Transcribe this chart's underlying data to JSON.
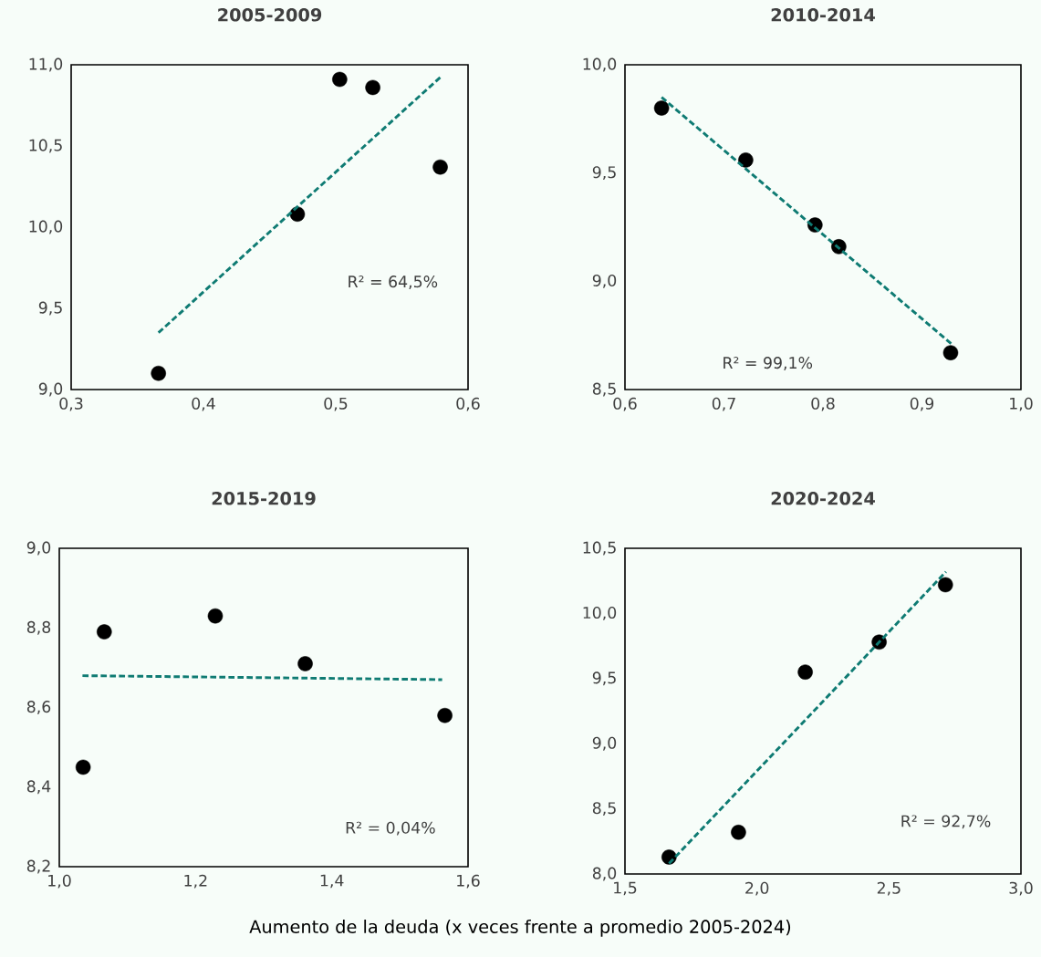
{
  "chart_data": [
    {
      "type": "scatter",
      "title": "2005-2009",
      "annotations": [
        "R² = 64,5%"
      ],
      "xlim": [
        0.3,
        0.6
      ],
      "xticks": [
        {
          "value": 0.3,
          "label": "0,3"
        },
        {
          "value": 0.4,
          "label": "0,4"
        },
        {
          "value": 0.5,
          "label": "0,5"
        },
        {
          "value": 0.6,
          "label": "0,6"
        }
      ],
      "ylim": [
        9.0,
        11.0
      ],
      "yticks": [
        {
          "value": 9.0,
          "label": "9,0"
        },
        {
          "value": 9.5,
          "label": "9,5"
        },
        {
          "value": 10.0,
          "label": "10,0"
        },
        {
          "value": 10.5,
          "label": "10,5"
        },
        {
          "value": 11.0,
          "label": "11,0"
        }
      ],
      "series": [
        {
          "type": "scatter",
          "marker": "circle",
          "color": "#000000",
          "x": [
            0.366,
            0.471,
            0.503,
            0.528,
            0.579
          ],
          "values": [
            9.1,
            10.08,
            10.91,
            10.86,
            10.37
          ]
        },
        {
          "type": "line",
          "line_style": "dashed",
          "marker": "none",
          "color": "#0f7b73",
          "x": [
            0.366,
            0.58
          ],
          "values": [
            9.35,
            10.93
          ]
        }
      ]
    },
    {
      "type": "scatter",
      "title": "2010-2014",
      "annotations": [
        "R² = 99,1%"
      ],
      "xlim": [
        0.6,
        1.0
      ],
      "xticks": [
        {
          "value": 0.6,
          "label": "0,6"
        },
        {
          "value": 0.7,
          "label": "0,7"
        },
        {
          "value": 0.8,
          "label": "0,8"
        },
        {
          "value": 0.9,
          "label": "0,9"
        },
        {
          "value": 1.0,
          "label": "1,0"
        }
      ],
      "ylim": [
        8.5,
        10.0
      ],
      "yticks": [
        {
          "value": 8.5,
          "label": "8,5"
        },
        {
          "value": 9.0,
          "label": "9,0"
        },
        {
          "value": 9.5,
          "label": "9,5"
        },
        {
          "value": 10.0,
          "label": "10,0"
        }
      ],
      "series": [
        {
          "type": "scatter",
          "marker": "circle",
          "color": "#000000",
          "x": [
            0.637,
            0.722,
            0.792,
            0.816,
            0.929
          ],
          "values": [
            9.8,
            9.56,
            9.26,
            9.16,
            8.67
          ]
        },
        {
          "type": "line",
          "line_style": "dashed",
          "marker": "none",
          "color": "#0f7b73",
          "x": [
            0.637,
            0.93
          ],
          "values": [
            9.85,
            8.71
          ]
        }
      ]
    },
    {
      "type": "scatter",
      "title": "2015-2019",
      "xlabel": "Aumento de la deuda (x veces frente a promedio 2005-2024)",
      "annotations": [
        "R² = 0,04%"
      ],
      "xlim": [
        1.0,
        1.6
      ],
      "xticks": [
        {
          "value": 1.0,
          "label": "1,0"
        },
        {
          "value": 1.2,
          "label": "1,2"
        },
        {
          "value": 1.4,
          "label": "1,4"
        },
        {
          "value": 1.6,
          "label": "1,6"
        }
      ],
      "ylim": [
        8.2,
        9.0
      ],
      "yticks": [
        {
          "value": 8.2,
          "label": "8,2"
        },
        {
          "value": 8.4,
          "label": "8,4"
        },
        {
          "value": 8.6,
          "label": "8,6"
        },
        {
          "value": 8.8,
          "label": "8,8"
        },
        {
          "value": 9.0,
          "label": "9,0"
        }
      ],
      "series": [
        {
          "type": "scatter",
          "marker": "circle",
          "color": "#000000",
          "x": [
            1.035,
            1.066,
            1.229,
            1.361,
            1.566
          ],
          "values": [
            8.45,
            8.79,
            8.83,
            8.71,
            8.58
          ]
        },
        {
          "type": "line",
          "line_style": "dashed",
          "marker": "none",
          "color": "#0f7b73",
          "x": [
            1.034,
            1.562
          ],
          "values": [
            8.68,
            8.67
          ]
        }
      ]
    },
    {
      "type": "scatter",
      "title": "2020-2024",
      "annotations": [
        "R² = 92,7%"
      ],
      "xlim": [
        1.5,
        3.0
      ],
      "xticks": [
        {
          "value": 1.5,
          "label": "1,5"
        },
        {
          "value": 2.0,
          "label": "2,0"
        },
        {
          "value": 2.5,
          "label": "2,5"
        },
        {
          "value": 3.0,
          "label": "3,0"
        }
      ],
      "ylim": [
        8.0,
        10.5
      ],
      "yticks": [
        {
          "value": 8.0,
          "label": "8,0"
        },
        {
          "value": 8.5,
          "label": "8,5"
        },
        {
          "value": 9.0,
          "label": "9,0"
        },
        {
          "value": 9.5,
          "label": "9,5"
        },
        {
          "value": 10.0,
          "label": "10,0"
        },
        {
          "value": 10.5,
          "label": "10,5"
        }
      ],
      "series": [
        {
          "type": "scatter",
          "marker": "circle",
          "color": "#000000",
          "x": [
            1.667,
            1.93,
            2.183,
            2.463,
            2.714
          ],
          "values": [
            8.13,
            8.32,
            9.55,
            9.78,
            10.22
          ]
        },
        {
          "type": "line",
          "line_style": "dashed",
          "marker": "none",
          "color": "#0f7b73",
          "x": [
            1.667,
            2.716
          ],
          "values": [
            8.08,
            10.32
          ]
        }
      ]
    }
  ]
}
